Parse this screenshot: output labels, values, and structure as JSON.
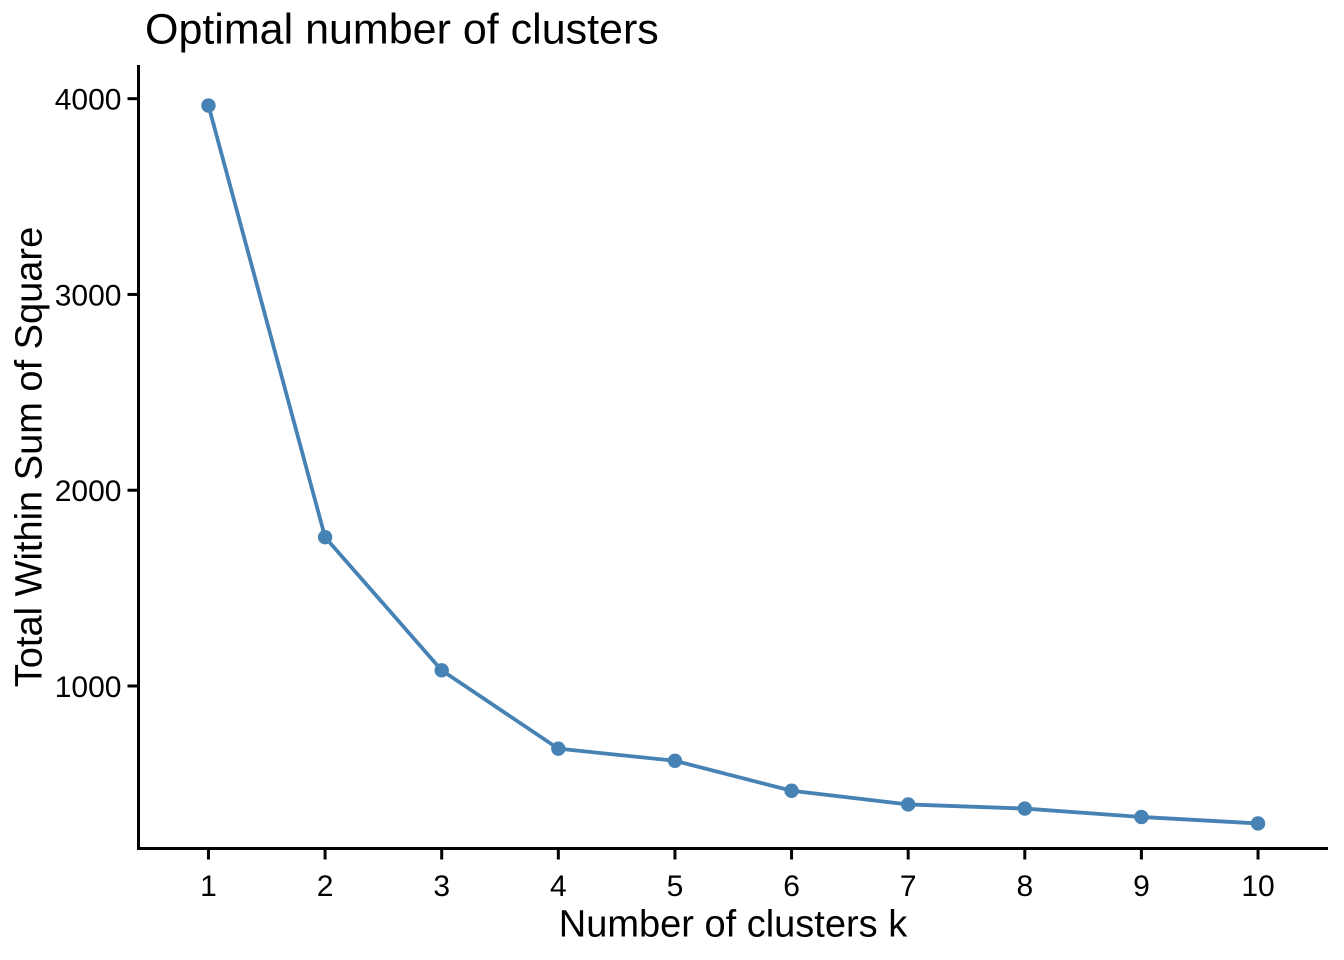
{
  "chart_data": {
    "type": "line",
    "title": "Optimal number of clusters",
    "xlabel": "Number of clusters k",
    "ylabel": "Total Within Sum of Square",
    "x": [
      1,
      2,
      3,
      4,
      5,
      6,
      7,
      8,
      9,
      10
    ],
    "series": [
      {
        "name": "Total within sum of square",
        "values": [
          3965,
          1760,
          1080,
          680,
          618,
          465,
          395,
          374,
          331,
          298
        ]
      }
    ],
    "xticks": [
      {
        "value": 1,
        "label": "1"
      },
      {
        "value": 2,
        "label": "2"
      },
      {
        "value": 3,
        "label": "3"
      },
      {
        "value": 4,
        "label": "4"
      },
      {
        "value": 5,
        "label": "5"
      },
      {
        "value": 6,
        "label": "6"
      },
      {
        "value": 7,
        "label": "7"
      },
      {
        "value": 8,
        "label": "8"
      },
      {
        "value": 9,
        "label": "9"
      },
      {
        "value": 10,
        "label": "10"
      }
    ],
    "yticks": [
      {
        "value": 1000,
        "label": "1000"
      },
      {
        "value": 2000,
        "label": "2000"
      },
      {
        "value": 3000,
        "label": "3000"
      },
      {
        "value": 4000,
        "label": "4000"
      }
    ],
    "axes": {
      "xlim": [
        0.4,
        10.6
      ],
      "ylim": [
        170,
        4172
      ],
      "grid": false,
      "legend": "none",
      "style": "theme-classic"
    },
    "colors": {
      "series": "#4682B4",
      "axis": "#000000",
      "text": "#000000",
      "background": "#ffffff"
    }
  }
}
